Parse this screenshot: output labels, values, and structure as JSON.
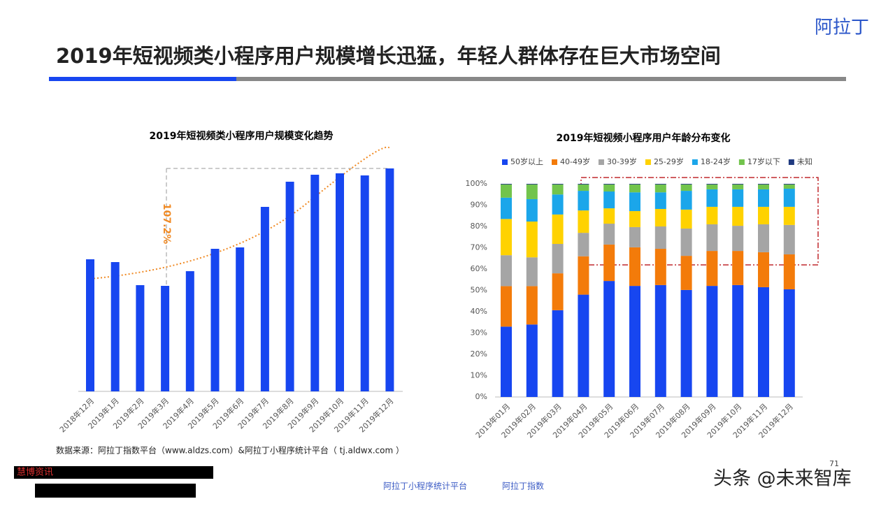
{
  "header": {
    "title": "2019年短视频类小程序用户规模增长迅猛，年轻人群体存在巨大市场空间",
    "logo": "阿拉丁"
  },
  "chart_data": [
    {
      "type": "bar",
      "title": "2019年短视频类小程序用户规模变化趋势",
      "annotation": "107.2%",
      "color": "#1746f0",
      "categories": [
        "2018年12月",
        "2019年1月",
        "2019年2月",
        "2019年3月",
        "2019年4月",
        "2019年5月",
        "2019年6月",
        "2019年7月",
        "2019年8月",
        "2019年9月",
        "2019年10月",
        "2019年11月",
        "2019年12月"
      ],
      "values": [
        189,
        185,
        152,
        151,
        172,
        204,
        206,
        264,
        300,
        310,
        312,
        309,
        319
      ]
    },
    {
      "type": "stacked_bar",
      "title": "2019年短视频小程序用户年龄分布变化",
      "categories": [
        "2019年01月",
        "2019年02月",
        "2019年03月",
        "2019年04月",
        "2019年05月",
        "2019年06月",
        "2019年07月",
        "2019年08月",
        "2019年09月",
        "2019年10月",
        "2019年11月",
        "2019年12月"
      ],
      "ylim": [
        0,
        100
      ],
      "yticks": [
        {
          "value": 0,
          "label": "0%"
        },
        {
          "value": 10,
          "label": "10%"
        },
        {
          "value": 20,
          "label": "20%"
        },
        {
          "value": 30,
          "label": "30%"
        },
        {
          "value": 40,
          "label": "40%"
        },
        {
          "value": 50,
          "label": "50%"
        },
        {
          "value": 60,
          "label": "60%"
        },
        {
          "value": 70,
          "label": "70%"
        },
        {
          "value": 80,
          "label": "80%"
        },
        {
          "value": 90,
          "label": "90%"
        },
        {
          "value": 100,
          "label": "100%"
        }
      ],
      "series": [
        {
          "name": "50岁以上",
          "color": "#1746f0",
          "values": [
            33,
            34,
            40.7,
            48,
            54.4,
            52.1,
            52.5,
            50.2,
            52.1,
            52.5,
            51.5,
            50.5
          ]
        },
        {
          "name": "40-49岁",
          "color": "#f37b0a",
          "values": [
            19,
            18,
            17.3,
            18,
            17.1,
            18.1,
            17,
            16,
            16.4,
            16,
            16.4,
            16.4
          ]
        },
        {
          "name": "30-39岁",
          "color": "#a5a5a5",
          "values": [
            14.5,
            13.5,
            13.8,
            11,
            9.8,
            9.5,
            10.5,
            12.8,
            12.5,
            11.8,
            13.1,
            13.8
          ]
        },
        {
          "name": "25-29岁",
          "color": "#ffd200",
          "values": [
            17,
            16.8,
            13.8,
            10.5,
            7.2,
            7.5,
            8.2,
            8.9,
            8.2,
            8.9,
            8.2,
            8.5
          ]
        },
        {
          "name": "18-24岁",
          "color": "#1ba6ea",
          "values": [
            10,
            10.5,
            9.4,
            9.2,
            7.9,
            8.8,
            7.8,
            8.8,
            8.2,
            8.2,
            8.2,
            8.5
          ]
        },
        {
          "name": "17岁以下",
          "color": "#72c44c",
          "values": [
            6.2,
            6.9,
            4.7,
            3,
            3.3,
            3.7,
            3.7,
            3,
            2.3,
            2.3,
            2.3,
            2
          ]
        },
        {
          "name": "未知",
          "color": "#1f3a80",
          "values": [
            0.3,
            0.3,
            0.3,
            0.3,
            0.3,
            0.3,
            0.3,
            0.3,
            0.3,
            0.3,
            0.3,
            0.3
          ]
        }
      ]
    }
  ],
  "footer": {
    "source": "数据来源：阿拉丁指数平台（www.aldzs.com）&阿拉丁小程序统计平台（ tj.aldwx.com ）",
    "redacted": "慧博资讯",
    "logo1": "阿拉丁小程序统计平台",
    "logo2": "阿拉丁指数",
    "page": "71",
    "watermark": "头条 @未来智库"
  }
}
